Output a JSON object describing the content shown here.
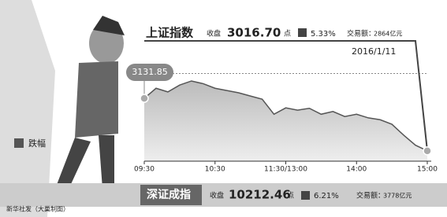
{
  "chart_data": {
    "type": "line",
    "sh_name": "上证指数",
    "sh_close_label": "收盘",
    "sh_close": "3016.70",
    "sh_unit": "点",
    "sh_change": "5.33%",
    "sh_volume_label": "交易额：",
    "sh_volume": "2864亿元",
    "date": "2016/1/11",
    "start_label": "3131.85",
    "legend_drop": "跌幅",
    "x": [
      0,
      10,
      20,
      30,
      40,
      50,
      60,
      70,
      80,
      90,
      100,
      110,
      120,
      130,
      140,
      150,
      160,
      170,
      180,
      190,
      200,
      210,
      220,
      230,
      240
    ],
    "values": [
      3131.85,
      3154,
      3146,
      3161,
      3170,
      3164,
      3154,
      3149,
      3144,
      3137,
      3130,
      3097,
      3111,
      3106,
      3110,
      3097,
      3103,
      3092,
      3097,
      3089,
      3085,
      3075,
      3051,
      3029,
      3016.7
    ],
    "color": "#555",
    "reference": 3186.4,
    "xlim": [
      0,
      240
    ],
    "ylim": [
      2994,
      3201
    ],
    "xticks": [
      {
        "value": 0,
        "label": "09:30"
      },
      {
        "value": 60,
        "label": "10:30"
      },
      {
        "value": 120,
        "label": "11:30/13:00"
      },
      {
        "value": 180,
        "label": "14:00"
      },
      {
        "value": 240,
        "label": "15:00"
      }
    ],
    "sz_name": "深证成指",
    "sz_close_label": "收盘",
    "sz_close": "10212.46",
    "sz_unit": "点",
    "sz_change": "6.21%",
    "sz_volume_label": "交易额：",
    "sz_volume": "3778亿元",
    "credit": "新华社发（大巢制图）"
  }
}
